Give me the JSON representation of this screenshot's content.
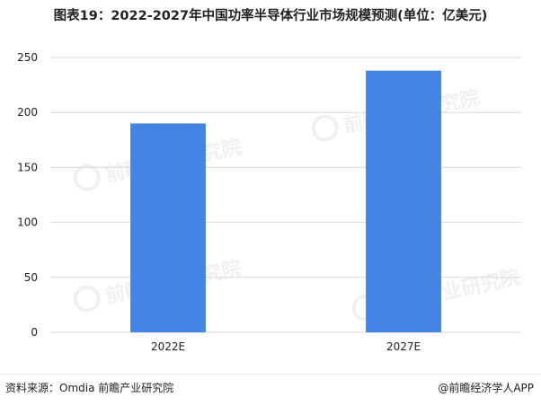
{
  "title": "图表19：2022-2027年中国功率半导体行业市场规模预测(单位：亿美元)",
  "footer": {
    "source": "资料来源：Omdia 前瞻产业研究院",
    "brand": "@前瞻经济学人APP"
  },
  "watermark": {
    "text": "前瞻产业研究院"
  },
  "colors": {
    "bar": "#4285E4",
    "grid": "#d9d9d9",
    "axis_text": "#222222"
  },
  "chart_data": {
    "type": "bar",
    "title": "图表19：2022-2027年中国功率半导体行业市场规模预测(单位：亿美元)",
    "categories": [
      "2022E",
      "2027E"
    ],
    "values": [
      190,
      238
    ],
    "ylim": [
      0,
      250
    ],
    "yticks": [
      0,
      50,
      100,
      150,
      200,
      250
    ],
    "xlabel": "",
    "ylabel": "",
    "grid": true,
    "legend": "none"
  }
}
